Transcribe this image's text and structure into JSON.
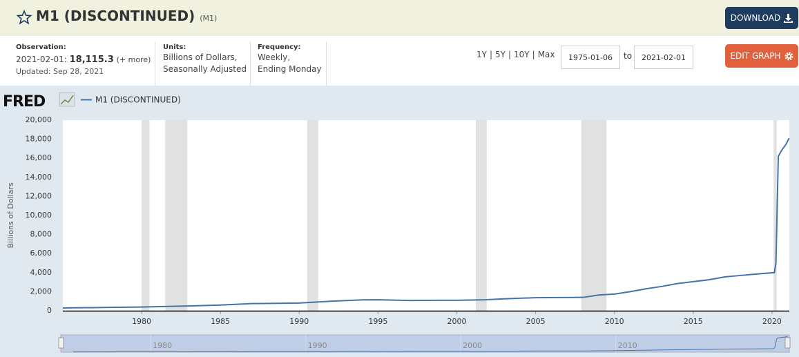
{
  "header": {
    "title": "M1 (DISCONTINUED)",
    "series_id": "(M1)",
    "download": "DOWNLOAD"
  },
  "observation": {
    "label": "Observation:",
    "date": "2021-02-01:",
    "value": "18,115.3",
    "more": "(+ more)",
    "updated": "Updated: Sep 28, 2021"
  },
  "units": {
    "label": "Units:",
    "lines": [
      "Billions of Dollars,",
      "Seasonally Adjusted"
    ]
  },
  "frequency": {
    "label": "Frequency:",
    "lines": [
      "Weekly,",
      "Ending Monday"
    ]
  },
  "range_buttons": [
    "1Y",
    "5Y",
    "10Y",
    "Max"
  ],
  "range_separator": "|",
  "date_range": {
    "start": "1975-01-06",
    "to": "to",
    "end": "2021-02-01"
  },
  "edit_graph": "EDIT GRAPH",
  "chart_data": {
    "type": "line",
    "logo": "FRED",
    "y_label": "Billions of Dollars",
    "x": [
      1975.0,
      1978.0,
      1980.0,
      1983.0,
      1985.0,
      1987.0,
      1990.0,
      1992.0,
      1994.0,
      1995.0,
      1997.0,
      2000.0,
      2001.8,
      2003.0,
      2005.0,
      2008.0,
      2009.0,
      2010.0,
      2011.0,
      2012.0,
      2013.0,
      2014.0,
      2015.0,
      2016.0,
      2017.0,
      2018.0,
      2019.0,
      2020.15,
      2020.25,
      2020.4,
      2020.6,
      2020.9,
      2021.085
    ],
    "series": [
      {
        "name": "M1 (DISCONTINUED)",
        "color": "#4572a7",
        "values": [
          290,
          350,
          390,
          500,
          600,
          750,
          810,
          1000,
          1140,
          1150,
          1080,
          1100,
          1150,
          1250,
          1370,
          1400,
          1650,
          1750,
          2000,
          2300,
          2550,
          2850,
          3050,
          3250,
          3550,
          3700,
          3850,
          4000,
          5000,
          16200,
          16800,
          17500,
          18115.3
        ]
      }
    ],
    "recessions": [
      [
        1980.0,
        1980.5
      ],
      [
        1981.5,
        1982.9
      ],
      [
        1990.5,
        1991.2
      ],
      [
        2001.2,
        2001.9
      ],
      [
        2007.9,
        2009.5
      ],
      [
        2020.1,
        2020.3
      ]
    ],
    "xlim": [
      1975.0,
      2021.1
    ],
    "ylim": [
      0,
      20000
    ],
    "xticks": [
      1980,
      1985,
      1990,
      1995,
      2000,
      2005,
      2010,
      2015,
      2020
    ],
    "yticks": [
      0,
      {
        "value": 2000,
        "label": "2,000"
      },
      {
        "value": 4000,
        "label": "4,000"
      },
      {
        "value": 6000,
        "label": "6,000"
      },
      {
        "value": 8000,
        "label": "8,000"
      },
      {
        "value": 10000,
        "label": "10,000"
      },
      {
        "value": 12000,
        "label": "12,000"
      },
      {
        "value": 14000,
        "label": "14,000"
      },
      {
        "value": 16000,
        "label": "16,000"
      },
      {
        "value": 18000,
        "label": "18,000"
      },
      {
        "value": 20000,
        "label": "20,000"
      }
    ],
    "grid": false,
    "navigator": {
      "xlim": [
        1974.2,
        2021.2
      ],
      "xticks": [
        1980,
        1990,
        2000,
        2010
      ]
    }
  }
}
